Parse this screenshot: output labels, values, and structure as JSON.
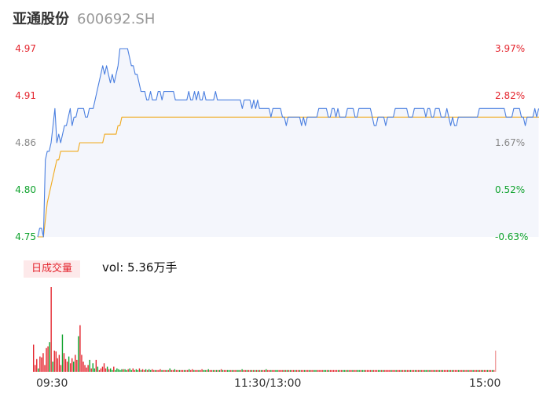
{
  "header": {
    "name": "亚通股份",
    "code": "600692.SH"
  },
  "chart_data": {
    "type": "line",
    "price_axis": {
      "ticks": [
        "4.97",
        "4.91",
        "4.86",
        "4.80",
        "4.75"
      ],
      "ylim": [
        4.75,
        4.97
      ]
    },
    "pct_axis": {
      "ticks": [
        "3.97%",
        "2.82%",
        "1.67%",
        "0.52%",
        "-0.63%"
      ]
    },
    "x_labels": [
      "09:30",
      "11:30/13:00",
      "15:00"
    ],
    "series": [
      {
        "color": "#4a7fe0",
        "values": [
          4.75,
          4.76,
          4.76,
          4.75,
          4.84,
          4.85,
          4.85,
          4.86,
          4.88,
          4.9,
          4.86,
          4.87,
          4.86,
          4.87,
          4.88,
          4.88,
          4.89,
          4.9,
          4.88,
          4.89,
          4.89,
          4.9,
          4.9,
          4.9,
          4.9,
          4.89,
          4.89,
          4.9,
          4.9,
          4.9,
          4.91,
          4.92,
          4.93,
          4.94,
          4.95,
          4.94,
          4.95,
          4.94,
          4.93,
          4.94,
          4.93,
          4.94,
          4.95,
          4.97,
          4.97,
          4.97,
          4.97,
          4.97,
          4.96,
          4.95,
          4.95,
          4.94,
          4.94,
          4.93,
          4.92,
          4.92,
          4.92,
          4.91,
          4.91,
          4.92,
          4.91,
          4.91,
          4.91,
          4.92,
          4.92,
          4.91,
          4.92,
          4.92,
          4.92,
          4.92,
          4.92,
          4.92,
          4.91,
          4.91,
          4.91,
          4.91,
          4.91,
          4.91,
          4.91,
          4.92,
          4.91,
          4.91,
          4.92,
          4.91,
          4.92,
          4.91,
          4.91,
          4.92,
          4.91,
          4.91,
          4.91,
          4.91,
          4.91,
          4.92,
          4.91,
          4.91,
          4.91,
          4.91,
          4.91,
          4.91,
          4.91,
          4.91,
          4.91,
          4.91,
          4.91,
          4.91,
          4.91,
          4.9,
          4.91,
          4.91,
          4.91,
          4.91,
          4.9,
          4.91,
          4.9,
          4.91,
          4.9,
          4.9,
          4.9,
          4.9,
          4.9,
          4.9,
          4.89,
          4.9,
          4.9,
          4.9,
          4.9,
          4.9,
          4.89,
          4.89,
          4.88,
          4.89,
          4.89,
          4.89,
          4.89,
          4.89,
          4.89,
          4.89,
          4.88,
          4.89,
          4.88,
          4.89,
          4.89,
          4.89,
          4.89,
          4.89,
          4.89,
          4.9,
          4.9,
          4.9,
          4.9,
          4.9,
          4.89,
          4.89,
          4.9,
          4.9,
          4.89,
          4.9,
          4.89,
          4.89,
          4.89,
          4.89,
          4.9,
          4.9,
          4.9,
          4.9,
          4.89,
          4.89,
          4.9,
          4.9,
          4.9,
          4.9,
          4.9,
          4.9,
          4.9,
          4.89,
          4.88,
          4.88,
          4.89,
          4.89,
          4.89,
          4.89,
          4.88,
          4.89,
          4.89,
          4.89,
          4.89,
          4.9,
          4.9,
          4.9,
          4.9,
          4.9,
          4.9,
          4.9,
          4.89,
          4.89,
          4.89,
          4.9,
          4.9,
          4.9,
          4.9,
          4.9,
          4.9,
          4.89,
          4.9,
          4.9,
          4.89,
          4.89,
          4.9,
          4.9,
          4.9,
          4.89,
          4.89,
          4.89,
          4.9,
          4.89,
          4.88,
          4.89,
          4.88,
          4.88,
          4.89,
          4.89,
          4.89,
          4.89,
          4.89,
          4.89,
          4.89,
          4.89,
          4.89,
          4.89,
          4.89,
          4.9,
          4.9,
          4.9,
          4.9,
          4.9,
          4.9,
          4.9,
          4.9,
          4.9,
          4.9,
          4.9,
          4.9,
          4.9,
          4.9,
          4.89,
          4.89,
          4.89,
          4.89,
          4.9,
          4.9,
          4.9,
          4.9,
          4.89,
          4.89,
          4.88,
          4.89,
          4.89,
          4.89,
          4.89,
          4.9,
          4.89,
          4.9
        ]
      },
      {
        "color": "#f0a91c",
        "values": [
          4.75,
          4.75,
          4.75,
          4.75,
          4.77,
          4.79,
          4.8,
          4.81,
          4.82,
          4.83,
          4.84,
          4.84,
          4.85,
          4.85,
          4.85,
          4.85,
          4.85,
          4.85,
          4.85,
          4.85,
          4.85,
          4.85,
          4.86,
          4.86,
          4.86,
          4.86,
          4.86,
          4.86,
          4.86,
          4.86,
          4.86,
          4.86,
          4.86,
          4.86,
          4.86,
          4.87,
          4.87,
          4.87,
          4.87,
          4.87,
          4.87,
          4.87,
          4.88,
          4.88,
          4.89,
          4.89,
          4.89,
          4.89,
          4.89,
          4.89,
          4.89,
          4.89,
          4.89,
          4.89,
          4.89,
          4.89,
          4.89,
          4.89,
          4.89,
          4.89,
          4.89,
          4.89,
          4.89,
          4.89,
          4.89,
          4.89,
          4.89,
          4.89,
          4.89,
          4.89,
          4.89,
          4.89,
          4.89,
          4.89,
          4.89,
          4.89,
          4.89,
          4.89,
          4.89,
          4.89,
          4.89,
          4.89,
          4.89,
          4.89,
          4.89,
          4.89,
          4.89,
          4.89,
          4.89,
          4.89,
          4.89,
          4.89,
          4.89,
          4.89,
          4.89,
          4.89,
          4.89,
          4.89,
          4.89,
          4.89,
          4.89,
          4.89,
          4.89,
          4.89,
          4.89,
          4.89,
          4.89,
          4.89,
          4.89,
          4.89,
          4.89,
          4.89,
          4.89,
          4.89,
          4.89,
          4.89,
          4.89,
          4.89,
          4.89,
          4.89,
          4.89,
          4.89,
          4.89,
          4.89,
          4.89,
          4.89,
          4.89,
          4.89,
          4.89,
          4.89,
          4.89,
          4.89,
          4.89,
          4.89,
          4.89,
          4.89,
          4.89,
          4.89,
          4.89,
          4.89,
          4.89,
          4.89,
          4.89,
          4.89,
          4.89,
          4.89,
          4.89,
          4.89,
          4.89,
          4.89,
          4.89,
          4.89,
          4.89,
          4.89,
          4.89,
          4.89,
          4.89,
          4.89,
          4.89,
          4.89,
          4.89,
          4.89,
          4.89,
          4.89,
          4.89,
          4.89,
          4.89,
          4.89,
          4.89,
          4.89,
          4.89,
          4.89,
          4.89,
          4.89,
          4.89,
          4.89,
          4.89,
          4.89,
          4.89,
          4.89,
          4.89,
          4.89,
          4.89,
          4.89,
          4.89,
          4.89,
          4.89,
          4.89,
          4.89,
          4.89,
          4.89,
          4.89,
          4.89,
          4.89,
          4.89,
          4.89,
          4.89,
          4.89,
          4.89,
          4.89,
          4.89,
          4.89,
          4.89,
          4.89,
          4.89,
          4.89,
          4.89,
          4.89,
          4.89,
          4.89,
          4.89,
          4.89,
          4.89,
          4.89,
          4.89,
          4.89,
          4.89,
          4.89,
          4.89,
          4.89,
          4.89,
          4.89,
          4.89,
          4.89,
          4.89,
          4.89,
          4.89,
          4.89,
          4.89,
          4.89,
          4.89,
          4.89,
          4.89,
          4.89,
          4.89,
          4.89,
          4.89,
          4.89,
          4.89,
          4.89,
          4.89,
          4.89,
          4.89,
          4.89,
          4.89,
          4.89,
          4.89,
          4.89,
          4.89,
          4.89,
          4.89,
          4.89,
          4.89,
          4.89,
          4.89,
          4.89,
          4.89,
          4.89,
          4.89,
          4.89,
          4.89,
          4.89,
          4.89,
          4.89,
          4.89,
          4.89,
          4.89,
          4.89,
          4.89,
          4.89,
          4.89,
          4.89,
          4.89,
          4.89,
          4.89,
          4.89,
          4.89,
          4.89,
          4.89,
          4.89,
          4.89,
          4.89,
          4.89,
          4.89
        ]
      }
    ],
    "volume": {
      "badge": "日成交量",
      "label": "vol: 5.36万手",
      "values": [
        32,
        8,
        15,
        4,
        18,
        17,
        22,
        8,
        28,
        30,
        35,
        100,
        12,
        25,
        24,
        16,
        20,
        8,
        44,
        22,
        15,
        12,
        18,
        10,
        16,
        12,
        20,
        14,
        42,
        55,
        20,
        12,
        8,
        5,
        8,
        14,
        4,
        10,
        4,
        14,
        6,
        2,
        4,
        6,
        10,
        4,
        6,
        3,
        4,
        2,
        6,
        2,
        4,
        3,
        2,
        3,
        3,
        3,
        2,
        3,
        4,
        2,
        4,
        2,
        3,
        2,
        4,
        2,
        3,
        2,
        3,
        2,
        3,
        2,
        3,
        2,
        2,
        2,
        2,
        3,
        2,
        2,
        2,
        2,
        2,
        4,
        2,
        2,
        3,
        2,
        2,
        2,
        2,
        2,
        2,
        2,
        2,
        3,
        2,
        3,
        2,
        2,
        2,
        2,
        2,
        3,
        2,
        2,
        2,
        3,
        2,
        2,
        2,
        2,
        2,
        2,
        2,
        3,
        2,
        2,
        2,
        2,
        2,
        2,
        2,
        2,
        2,
        2,
        2,
        2,
        3,
        2,
        2,
        2,
        2,
        2,
        2,
        2,
        2,
        2,
        2,
        2,
        2,
        2,
        2,
        3,
        2,
        2,
        2,
        2,
        2,
        2,
        2,
        2,
        2,
        2,
        2,
        2,
        2,
        2,
        2,
        2,
        2,
        2,
        2,
        2,
        2,
        2,
        2,
        2,
        2,
        2,
        2,
        2,
        2,
        2,
        2,
        2,
        2,
        2,
        2,
        2,
        2,
        2,
        2,
        2,
        2,
        2,
        2,
        2,
        2,
        2,
        2,
        2,
        2,
        2,
        2,
        2,
        2,
        2,
        2,
        2,
        2,
        2,
        2,
        2,
        2,
        2,
        2,
        2,
        2,
        2,
        2,
        2,
        2,
        2,
        2,
        2,
        2,
        2,
        2,
        2,
        2,
        2,
        2,
        2,
        2,
        2,
        2,
        2,
        2,
        2,
        2,
        2,
        2,
        2,
        2,
        2,
        2,
        2,
        2,
        2,
        2,
        2,
        2,
        2,
        2,
        2,
        2,
        2,
        2,
        2,
        2,
        2,
        2,
        2,
        2,
        2,
        2,
        2,
        2,
        2,
        2,
        2,
        2,
        2,
        2,
        2,
        2,
        2,
        2,
        2,
        2,
        2,
        2,
        2,
        2,
        2,
        2,
        2,
        2,
        2,
        2,
        2,
        2,
        2,
        2,
        2,
        25
      ],
      "ylim": [
        0,
        100
      ]
    },
    "colors": {
      "up": "#e4252e",
      "down": "#0ea22c",
      "flat": "#888888",
      "area": "#f4f6fc"
    }
  }
}
